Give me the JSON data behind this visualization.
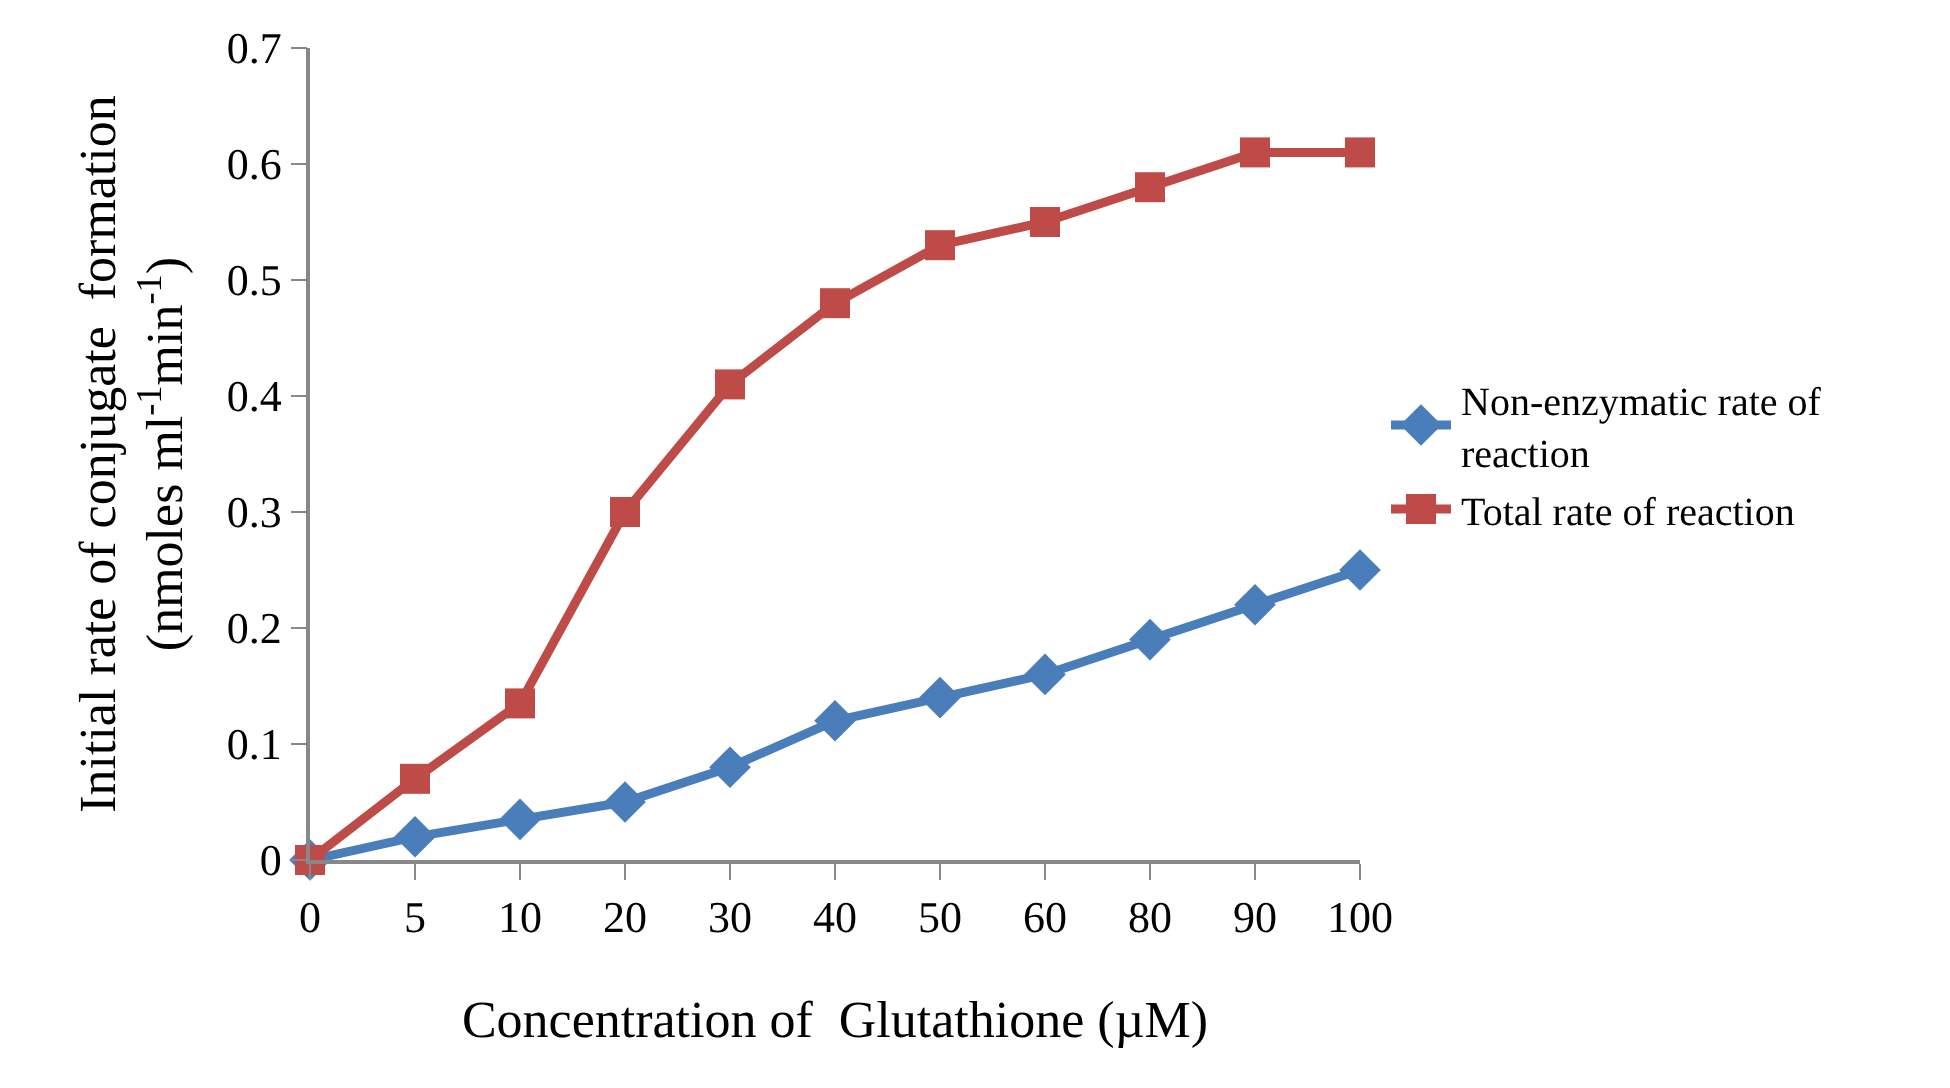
{
  "chart_data": {
    "type": "line",
    "xlabel": "Concentration of  Glutathione (µM)",
    "ylabel": "Initial rate of conjugate  formation\n(nmoles ml$^{-1}$min$^{-1}$)",
    "categories": [
      "0",
      "5",
      "10",
      "20",
      "30",
      "40",
      "50",
      "60",
      "80",
      "90",
      "100"
    ],
    "series": [
      {
        "name": "Non-enzymatic rate of\nreaction",
        "color": "#4a7ebb",
        "marker": "diamond",
        "values": [
          0,
          0.02,
          0.035,
          0.05,
          0.08,
          0.12,
          0.14,
          0.16,
          0.19,
          0.22,
          0.25
        ]
      },
      {
        "name": "Total rate of reaction",
        "color": "#be4b48",
        "marker": "square",
        "values": [
          0,
          0.07,
          0.135,
          0.3,
          0.41,
          0.48,
          0.53,
          0.55,
          0.58,
          0.61,
          0.61
        ]
      }
    ],
    "ylim": [
      0,
      0.7
    ],
    "yticks": [
      0,
      0.1,
      0.2,
      0.3,
      0.4,
      0.5,
      0.6,
      0.7
    ],
    "legend": "right",
    "line_style": "solid"
  }
}
